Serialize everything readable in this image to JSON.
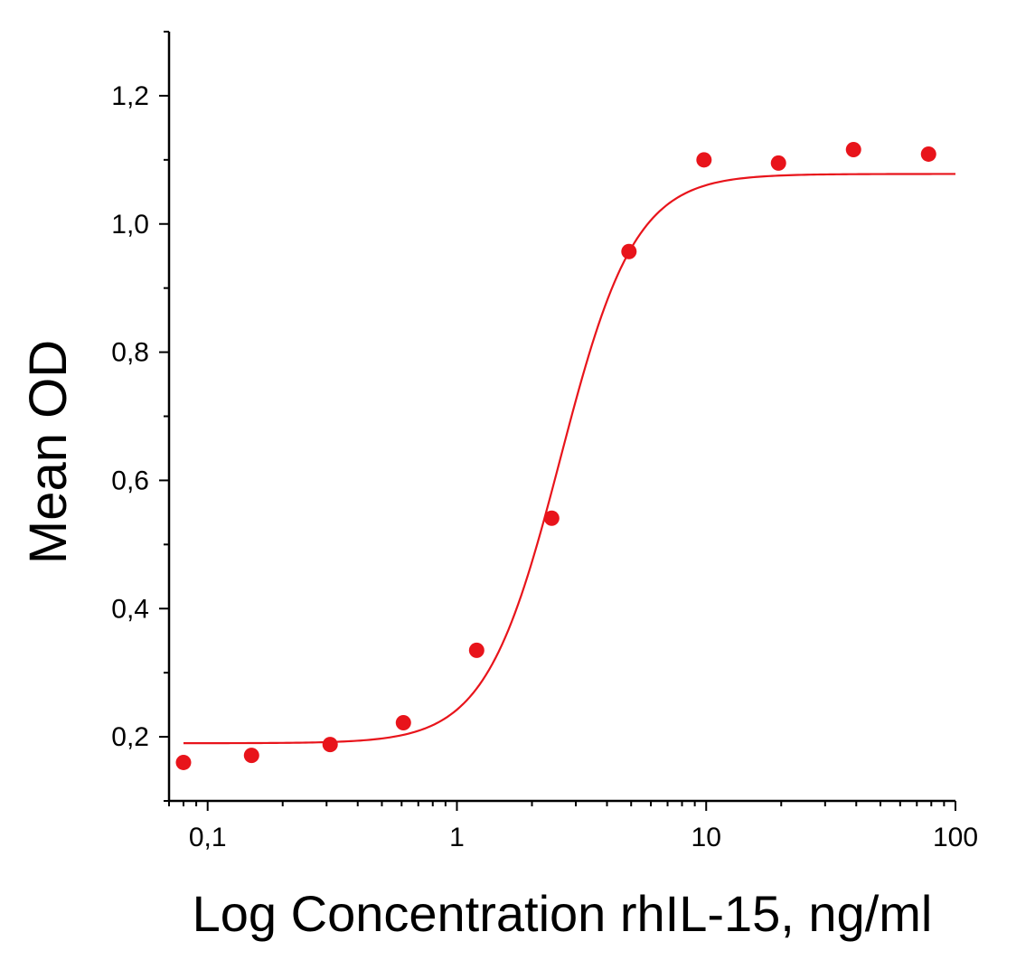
{
  "chart_data": {
    "type": "scatter",
    "title": "",
    "xlabel": "Log Concentration rhIL-15, ng/ml",
    "ylabel": "Mean OD",
    "xscale": "log",
    "xlim": [
      0.07,
      100
    ],
    "ylim": [
      0.1,
      1.3
    ],
    "x_ticks": [
      {
        "value": 0.1,
        "label": "0,1"
      },
      {
        "value": 1,
        "label": "1"
      },
      {
        "value": 10,
        "label": "10"
      },
      {
        "value": 100,
        "label": "100"
      }
    ],
    "y_ticks": [
      {
        "value": 0.2,
        "label": "0,2"
      },
      {
        "value": 0.4,
        "label": "0,4"
      },
      {
        "value": 0.6,
        "label": "0,6"
      },
      {
        "value": 0.8,
        "label": "0,8"
      },
      {
        "value": 1.0,
        "label": "1,0"
      },
      {
        "value": 1.2,
        "label": "1,2"
      }
    ],
    "y_minor_step": 0.1,
    "grid": false,
    "legend": "none",
    "series": [
      {
        "name": "Mean OD",
        "kind": "scatter",
        "color": "#e8141b",
        "x": [
          0.08,
          0.15,
          0.31,
          0.61,
          1.2,
          2.4,
          4.9,
          9.8,
          19.5,
          39,
          78
        ],
        "y": [
          0.16,
          0.171,
          0.188,
          0.222,
          0.335,
          0.541,
          0.957,
          1.1,
          1.095,
          1.116,
          1.109
        ]
      },
      {
        "name": "Fit",
        "kind": "line",
        "color": "#e8141b",
        "model": "4PL",
        "params": {
          "bottom": 0.19,
          "top": 1.078,
          "ec50": 2.6,
          "hill": 2.9
        },
        "x_range": [
          0.08,
          100
        ]
      }
    ]
  }
}
